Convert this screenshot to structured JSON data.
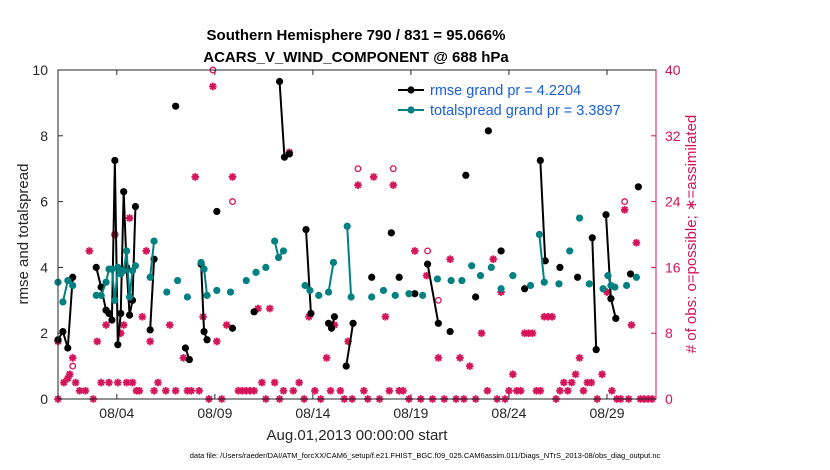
{
  "chart_data": {
    "type": "line",
    "title_line1": "Southern Hemisphere 790 / 831 = 95.066%",
    "title_line2": "ACARS_V_WIND_COMPONENT @ 688 hPa",
    "xlabel": "Aug.01,2013 00:00:00 start",
    "ylabel": "rmse and totalspread",
    "ylabel_right": "# of obs: o=possible; ∗=assimilated",
    "xlim": [
      1,
      31.5
    ],
    "ylim": [
      0,
      10
    ],
    "ylim_right": [
      0,
      40
    ],
    "x_ticks": [
      4,
      9,
      14,
      19,
      24,
      29
    ],
    "x_tick_labels": [
      "08/04",
      "08/09",
      "08/14",
      "08/19",
      "08/24",
      "08/29"
    ],
    "y_ticks": [
      "0",
      "2",
      "4",
      "6",
      "8",
      "10"
    ],
    "y_ticks_right": [
      "0",
      "8",
      "16",
      "24",
      "32",
      "40"
    ],
    "footer": "data file: /Users/raeder/DAI/ATM_forcXX/CAM6_setup/f.e21.FHIST_BGC.f09_025.CAM6assim.011/Diags_NTrS_2013-08/obs_diag_output.nc",
    "colors": {
      "rmse": "#000000",
      "spread": "#008080",
      "obs": "#d4145a",
      "legend_text": "#1a5fd6"
    },
    "series": [
      {
        "name": "rmse grand pr = 4.2204",
        "key": "rmse",
        "segments": [
          [
            [
              1.0,
              1.8
            ],
            [
              1.25,
              2.05
            ],
            [
              1.5,
              1.55
            ],
            [
              1.75,
              3.7
            ]
          ],
          [
            [
              2.95,
              4.0
            ],
            [
              3.2,
              3.4
            ],
            [
              3.45,
              2.7
            ],
            [
              3.6,
              2.6
            ],
            [
              3.75,
              2.4
            ],
            [
              3.9,
              7.25
            ],
            [
              4.05,
              1.65
            ],
            [
              4.2,
              2.6
            ],
            [
              4.35,
              6.3
            ],
            [
              4.5,
              4.0
            ],
            [
              4.65,
              2.55
            ],
            [
              4.8,
              3.0
            ],
            [
              4.95,
              5.85
            ]
          ],
          [
            [
              5.7,
              2.1
            ],
            [
              5.9,
              4.25
            ]
          ],
          [
            [
              7.0,
              8.9
            ]
          ],
          [
            [
              7.5,
              1.55
            ],
            [
              7.7,
              1.2
            ]
          ],
          [
            [
              8.3,
              4.1
            ],
            [
              8.45,
              2.05
            ],
            [
              8.6,
              1.8
            ]
          ],
          [
            [
              9.1,
              5.7
            ]
          ],
          [
            [
              9.9,
              2.15
            ]
          ],
          [
            [
              11.0,
              2.65
            ]
          ],
          [
            [
              12.3,
              9.65
            ],
            [
              12.55,
              7.35
            ],
            [
              12.8,
              7.45
            ]
          ],
          [
            [
              13.65,
              5.15
            ],
            [
              13.9,
              2.6
            ]
          ],
          [
            [
              14.8,
              2.3
            ],
            [
              14.95,
              2.15
            ],
            [
              15.1,
              2.5
            ]
          ],
          [
            [
              15.7,
              1.0
            ],
            [
              16.05,
              2.3
            ]
          ],
          [
            [
              17.0,
              3.7
            ]
          ],
          [
            [
              18.0,
              5.05
            ]
          ],
          [
            [
              18.4,
              3.7
            ]
          ],
          [
            [
              19.2,
              3.2
            ]
          ],
          [
            [
              19.85,
              4.1
            ],
            [
              20.4,
              2.3
            ]
          ],
          [
            [
              21.0,
              2.05
            ]
          ],
          [
            [
              21.8,
              6.8
            ]
          ],
          [
            [
              22.3,
              3.1
            ]
          ],
          [
            [
              22.95,
              8.15
            ]
          ],
          [
            [
              23.6,
              4.5
            ]
          ],
          [
            [
              24.8,
              3.35
            ]
          ],
          [
            [
              25.6,
              7.25
            ],
            [
              25.85,
              4.2
            ]
          ],
          [
            [
              26.6,
              4.0
            ]
          ],
          [
            [
              27.5,
              3.7
            ]
          ],
          [
            [
              28.25,
              4.9
            ],
            [
              28.45,
              1.5
            ]
          ],
          [
            [
              28.95,
              5.6
            ],
            [
              29.2,
              3.05
            ],
            [
              29.45,
              2.45
            ]
          ],
          [
            [
              30.2,
              3.8
            ]
          ],
          [
            [
              30.6,
              6.45
            ]
          ]
        ]
      },
      {
        "name": "totalspread grand pr = 3.3897",
        "key": "spread",
        "segments": [
          [
            [
              1.0,
              3.55
            ]
          ],
          [
            [
              1.25,
              2.95
            ],
            [
              1.5,
              3.6
            ],
            [
              1.75,
              3.45
            ]
          ],
          [
            [
              2.95,
              3.15
            ],
            [
              3.2,
              3.15
            ],
            [
              3.45,
              3.55
            ],
            [
              3.6,
              3.95
            ],
            [
              3.75,
              3.95
            ],
            [
              3.9,
              3.0
            ],
            [
              4.05,
              4.0
            ],
            [
              4.2,
              3.8
            ],
            [
              4.35,
              3.9
            ],
            [
              4.5,
              4.5
            ],
            [
              4.65,
              3.1
            ],
            [
              4.8,
              3.9
            ],
            [
              4.95,
              4.05
            ]
          ],
          [
            [
              5.7,
              3.7
            ],
            [
              5.9,
              4.8
            ]
          ],
          [
            [
              6.55,
              3.25
            ]
          ],
          [
            [
              7.1,
              3.6
            ]
          ],
          [
            [
              7.6,
              3.1
            ]
          ],
          [
            [
              8.3,
              4.15
            ],
            [
              8.45,
              3.95
            ],
            [
              8.6,
              3.15
            ]
          ],
          [
            [
              9.1,
              3.3
            ]
          ],
          [
            [
              9.8,
              3.25
            ]
          ],
          [
            [
              10.6,
              3.6
            ]
          ],
          [
            [
              11.1,
              3.85
            ]
          ],
          [
            [
              11.6,
              4.0
            ]
          ],
          [
            [
              12.05,
              4.8
            ],
            [
              12.25,
              4.3
            ],
            [
              12.5,
              4.5
            ]
          ],
          [
            [
              13.6,
              3.45
            ],
            [
              13.85,
              3.3
            ]
          ],
          [
            [
              14.3,
              3.15
            ]
          ],
          [
            [
              14.8,
              3.25
            ],
            [
              15.05,
              4.15
            ]
          ],
          [
            [
              15.75,
              5.25
            ],
            [
              15.95,
              3.1
            ]
          ],
          [
            [
              17.0,
              3.1
            ]
          ],
          [
            [
              17.6,
              3.3
            ]
          ],
          [
            [
              18.2,
              3.15
            ]
          ],
          [
            [
              18.9,
              3.2
            ]
          ],
          [
            [
              19.6,
              3.15
            ]
          ],
          [
            [
              20.35,
              3.65
            ]
          ],
          [
            [
              21.05,
              3.6
            ]
          ],
          [
            [
              21.6,
              3.6
            ]
          ],
          [
            [
              22.1,
              4.05
            ]
          ],
          [
            [
              22.55,
              3.75
            ]
          ],
          [
            [
              23.1,
              4.0
            ]
          ],
          [
            [
              23.6,
              3.35
            ]
          ],
          [
            [
              24.2,
              3.75
            ]
          ],
          [
            [
              25.1,
              3.45
            ]
          ],
          [
            [
              25.55,
              5.0
            ],
            [
              25.8,
              3.55
            ]
          ],
          [
            [
              26.55,
              3.5
            ]
          ],
          [
            [
              27.1,
              4.5
            ]
          ],
          [
            [
              27.6,
              5.5
            ]
          ],
          [
            [
              28.1,
              3.5
            ]
          ],
          [
            [
              28.8,
              3.35
            ]
          ],
          [
            [
              29.05,
              3.75
            ],
            [
              29.2,
              3.45
            ],
            [
              29.4,
              3.4
            ]
          ],
          [
            [
              30.0,
              3.45
            ]
          ],
          [
            [
              30.5,
              3.7
            ]
          ]
        ]
      }
    ],
    "obs_assimilated": [
      [
        1.0,
        0
      ],
      [
        1.0,
        7
      ],
      [
        1.3,
        2
      ],
      [
        1.5,
        2.5
      ],
      [
        1.6,
        3
      ],
      [
        1.75,
        5
      ],
      [
        1.9,
        2
      ],
      [
        2.1,
        1
      ],
      [
        2.4,
        1
      ],
      [
        2.6,
        18
      ],
      [
        2.8,
        0
      ],
      [
        3.0,
        7
      ],
      [
        3.2,
        2
      ],
      [
        3.45,
        9
      ],
      [
        3.6,
        2
      ],
      [
        3.9,
        20
      ],
      [
        4.05,
        2
      ],
      [
        4.2,
        8
      ],
      [
        4.35,
        9
      ],
      [
        4.5,
        2
      ],
      [
        4.65,
        22
      ],
      [
        4.8,
        2
      ],
      [
        5.0,
        1
      ],
      [
        5.15,
        1
      ],
      [
        5.3,
        10
      ],
      [
        5.5,
        18
      ],
      [
        5.7,
        7
      ],
      [
        5.9,
        1
      ],
      [
        6.1,
        2
      ],
      [
        6.5,
        1
      ],
      [
        6.7,
        9
      ],
      [
        7.0,
        1
      ],
      [
        7.4,
        5
      ],
      [
        7.6,
        1
      ],
      [
        7.8,
        1
      ],
      [
        8.0,
        27
      ],
      [
        8.2,
        1
      ],
      [
        8.4,
        10
      ],
      [
        8.7,
        0
      ],
      [
        8.9,
        38
      ],
      [
        9.1,
        7
      ],
      [
        9.35,
        0
      ],
      [
        9.6,
        9
      ],
      [
        9.9,
        27
      ],
      [
        10.2,
        1
      ],
      [
        10.4,
        1
      ],
      [
        10.6,
        1
      ],
      [
        10.8,
        1
      ],
      [
        11.0,
        1
      ],
      [
        11.2,
        11
      ],
      [
        11.4,
        2
      ],
      [
        11.6,
        0
      ],
      [
        11.8,
        11
      ],
      [
        12.05,
        2
      ],
      [
        12.3,
        0
      ],
      [
        12.5,
        1
      ],
      [
        12.8,
        30
      ],
      [
        13.0,
        1
      ],
      [
        13.3,
        2
      ],
      [
        13.55,
        0
      ],
      [
        13.8,
        10
      ],
      [
        14.1,
        1
      ],
      [
        14.4,
        0
      ],
      [
        14.7,
        5
      ],
      [
        14.9,
        1
      ],
      [
        15.1,
        9
      ],
      [
        15.4,
        1
      ],
      [
        15.6,
        0
      ],
      [
        15.8,
        7
      ],
      [
        16.0,
        0
      ],
      [
        16.3,
        26
      ],
      [
        16.6,
        1
      ],
      [
        16.8,
        0
      ],
      [
        17.1,
        27
      ],
      [
        17.4,
        0
      ],
      [
        17.7,
        10
      ],
      [
        17.9,
        1
      ],
      [
        18.1,
        26
      ],
      [
        18.4,
        1
      ],
      [
        18.6,
        1
      ],
      [
        18.9,
        0
      ],
      [
        19.2,
        18
      ],
      [
        19.5,
        0
      ],
      [
        19.8,
        15
      ],
      [
        20.1,
        0
      ],
      [
        20.4,
        5
      ],
      [
        20.7,
        0
      ],
      [
        21.0,
        17
      ],
      [
        21.3,
        0
      ],
      [
        21.5,
        5
      ],
      [
        21.7,
        0
      ],
      [
        22.0,
        4
      ],
      [
        22.3,
        0
      ],
      [
        22.6,
        8
      ],
      [
        22.9,
        1
      ],
      [
        23.2,
        17
      ],
      [
        23.4,
        0
      ],
      [
        23.6,
        13
      ],
      [
        23.8,
        0
      ],
      [
        24.0,
        1
      ],
      [
        24.2,
        3
      ],
      [
        24.4,
        1
      ],
      [
        24.6,
        1
      ],
      [
        24.8,
        8
      ],
      [
        25.0,
        8
      ],
      [
        25.2,
        8
      ],
      [
        25.4,
        1
      ],
      [
        25.6,
        1
      ],
      [
        25.8,
        10
      ],
      [
        26.0,
        10
      ],
      [
        26.2,
        10
      ],
      [
        26.4,
        0
      ],
      [
        26.6,
        1
      ],
      [
        26.8,
        2
      ],
      [
        27.0,
        1
      ],
      [
        27.2,
        2
      ],
      [
        27.4,
        3
      ],
      [
        27.6,
        5
      ],
      [
        27.8,
        1
      ],
      [
        28.0,
        2
      ],
      [
        28.2,
        2
      ],
      [
        28.5,
        0
      ],
      [
        28.75,
        3
      ],
      [
        29.0,
        13
      ],
      [
        29.25,
        1
      ],
      [
        29.5,
        0
      ],
      [
        29.7,
        0
      ],
      [
        29.9,
        23
      ],
      [
        30.1,
        0
      ],
      [
        30.25,
        9
      ],
      [
        30.5,
        19
      ],
      [
        30.7,
        0
      ],
      [
        30.9,
        0
      ],
      [
        31.1,
        0
      ],
      [
        31.3,
        0
      ]
    ],
    "obs_possible": [
      [
        1.75,
        4
      ],
      [
        3.9,
        20
      ],
      [
        8.9,
        40
      ],
      [
        9.9,
        24
      ],
      [
        16.3,
        28
      ],
      [
        18.1,
        28
      ],
      [
        19.85,
        18
      ],
      [
        20.4,
        12
      ],
      [
        29.9,
        24
      ]
    ]
  }
}
